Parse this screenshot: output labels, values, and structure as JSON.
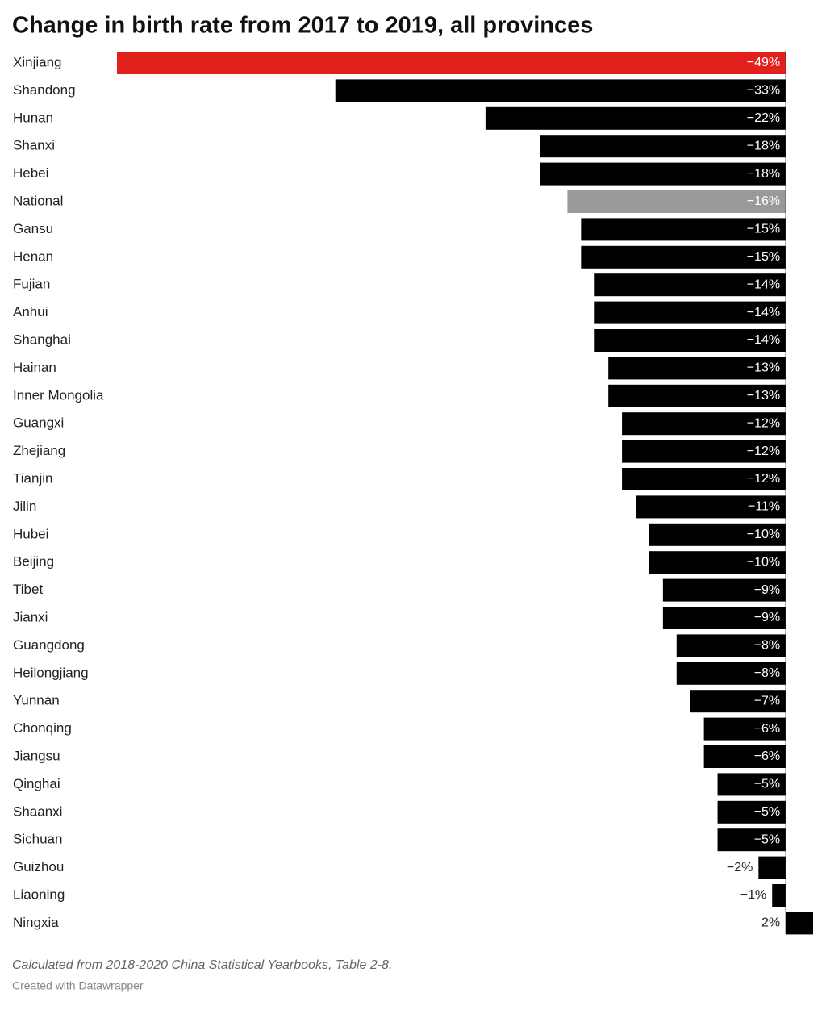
{
  "chart_data": {
    "type": "bar",
    "orientation": "horizontal",
    "title": "Change in birth rate from 2017 to 2019, all provinces",
    "categories": [
      "Xinjiang",
      "Shandong",
      "Hunan",
      "Shanxi",
      "Hebei",
      "National",
      "Gansu",
      "Henan",
      "Fujian",
      "Anhui",
      "Shanghai",
      "Hainan",
      "Inner Mongolia",
      "Guangxi",
      "Zhejiang",
      "Tianjin",
      "Jilin",
      "Hubei",
      "Beijing",
      "Tibet",
      "Jianxi",
      "Guangdong",
      "Heilongjiang",
      "Yunnan",
      "Chonqing",
      "Jiangsu",
      "Qinghai",
      "Shaanxi",
      "Sichuan",
      "Guizhou",
      "Liaoning",
      "Ningxia"
    ],
    "values": [
      -49,
      -33,
      -22,
      -18,
      -18,
      -16,
      -15,
      -15,
      -14,
      -14,
      -14,
      -13,
      -13,
      -12,
      -12,
      -12,
      -11,
      -10,
      -10,
      -9,
      -9,
      -8,
      -8,
      -7,
      -6,
      -6,
      -5,
      -5,
      -5,
      -2,
      -1,
      2
    ],
    "value_labels": [
      "−49%",
      "−33%",
      "−22%",
      "−18%",
      "−18%",
      "−16%",
      "−15%",
      "−15%",
      "−14%",
      "−14%",
      "−14%",
      "−13%",
      "−13%",
      "−12%",
      "−12%",
      "−12%",
      "−11%",
      "−10%",
      "−10%",
      "−9%",
      "−9%",
      "−8%",
      "−8%",
      "−7%",
      "−6%",
      "−6%",
      "−5%",
      "−5%",
      "−5%",
      "−2%",
      "−1%",
      "2%"
    ],
    "colors": [
      "#e3211c",
      "#000000",
      "#000000",
      "#000000",
      "#000000",
      "#999999",
      "#000000",
      "#000000",
      "#000000",
      "#000000",
      "#000000",
      "#000000",
      "#000000",
      "#000000",
      "#000000",
      "#000000",
      "#000000",
      "#000000",
      "#000000",
      "#000000",
      "#000000",
      "#000000",
      "#000000",
      "#000000",
      "#000000",
      "#000000",
      "#000000",
      "#000000",
      "#000000",
      "#000000",
      "#000000",
      "#000000"
    ],
    "notes": [
      "Calculated from 2018-2020 China Statistical Yearbooks, Table 2-8.",
      "Created with Datawrapper"
    ]
  }
}
